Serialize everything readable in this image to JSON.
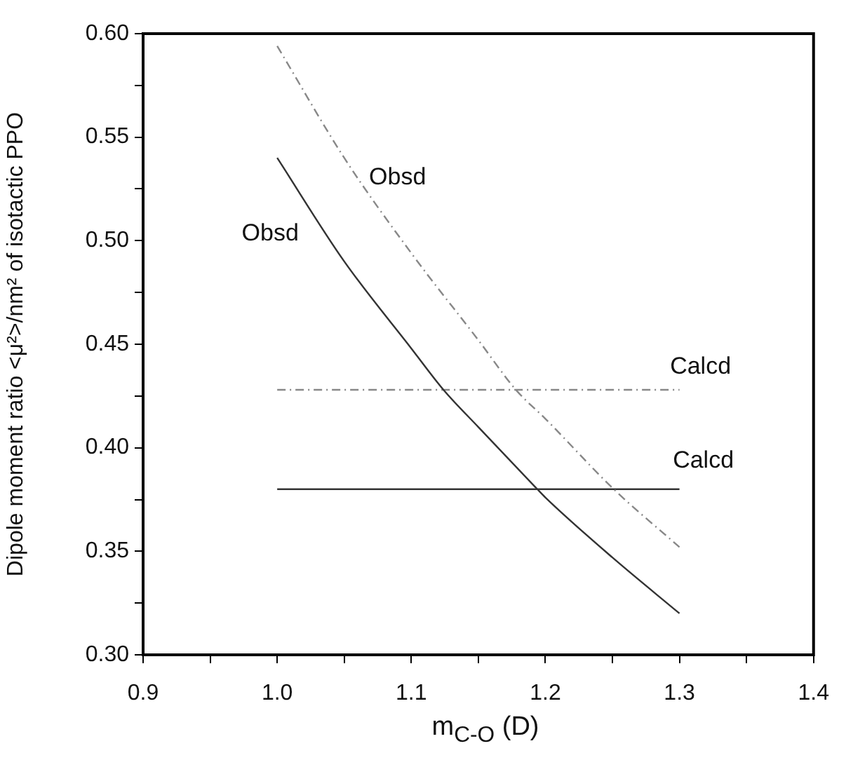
{
  "chart_data": {
    "type": "line",
    "xlabel": "m$_{C-O}$ (D)",
    "ylabel": "Dipole moment ratio <μ²>/nm² of isotactic PPO",
    "xlim": [
      0.9,
      1.4
    ],
    "xticks": [
      {
        "value": 0.9,
        "label": "0.9"
      },
      {
        "value": 0.95,
        "label": null
      },
      {
        "value": 1.0,
        "label": "1.0"
      },
      {
        "value": 1.05,
        "label": null
      },
      {
        "value": 1.1,
        "label": "1.1"
      },
      {
        "value": 1.15,
        "label": null
      },
      {
        "value": 1.2,
        "label": "1.2"
      },
      {
        "value": 1.25,
        "label": null
      },
      {
        "value": 1.3,
        "label": "1.3"
      },
      {
        "value": 1.35,
        "label": null
      },
      {
        "value": 1.4,
        "label": "1.4"
      }
    ],
    "ylim": [
      0.3,
      0.6
    ],
    "yticks": [
      {
        "value": 0.3,
        "label": "0.30"
      },
      {
        "value": 0.325,
        "label": null
      },
      {
        "value": 0.35,
        "label": "0.35"
      },
      {
        "value": 0.375,
        "label": null
      },
      {
        "value": 0.4,
        "label": "0.40"
      },
      {
        "value": 0.425,
        "label": null
      },
      {
        "value": 0.45,
        "label": "0.45"
      },
      {
        "value": 0.475,
        "label": null
      },
      {
        "value": 0.5,
        "label": "0.50"
      },
      {
        "value": 0.525,
        "label": null
      },
      {
        "value": 0.55,
        "label": "0.55"
      },
      {
        "value": 0.575,
        "label": null
      },
      {
        "value": 0.6,
        "label": "0.60"
      }
    ],
    "grid": false,
    "legend": false,
    "marker": "none",
    "series": [
      {
        "name": "Obsd",
        "color": "#333333",
        "line_style": "solid",
        "x": [
          1.0,
          1.05,
          1.1,
          1.124,
          1.15,
          1.194,
          1.2,
          1.25,
          1.3
        ],
        "values": [
          0.54,
          0.49,
          0.448,
          0.428,
          0.41,
          0.38,
          0.376,
          0.347,
          0.32
        ]
      },
      {
        "name": "Obsd",
        "color": "#888888",
        "line_style": "dashed",
        "x": [
          1.0,
          1.05,
          1.1,
          1.15,
          1.178,
          1.2,
          1.251,
          1.3
        ],
        "values": [
          0.594,
          0.54,
          0.494,
          0.452,
          0.428,
          0.414,
          0.38,
          0.352
        ]
      },
      {
        "name": "Calcd",
        "color": "#333333",
        "line_style": "solid",
        "x": [
          1.0,
          1.3
        ],
        "values": [
          0.38,
          0.38
        ]
      },
      {
        "name": "Calcd",
        "color": "#888888",
        "line_style": "dashed",
        "x": [
          1.0,
          1.3
        ],
        "values": [
          0.428,
          0.428
        ]
      }
    ]
  }
}
